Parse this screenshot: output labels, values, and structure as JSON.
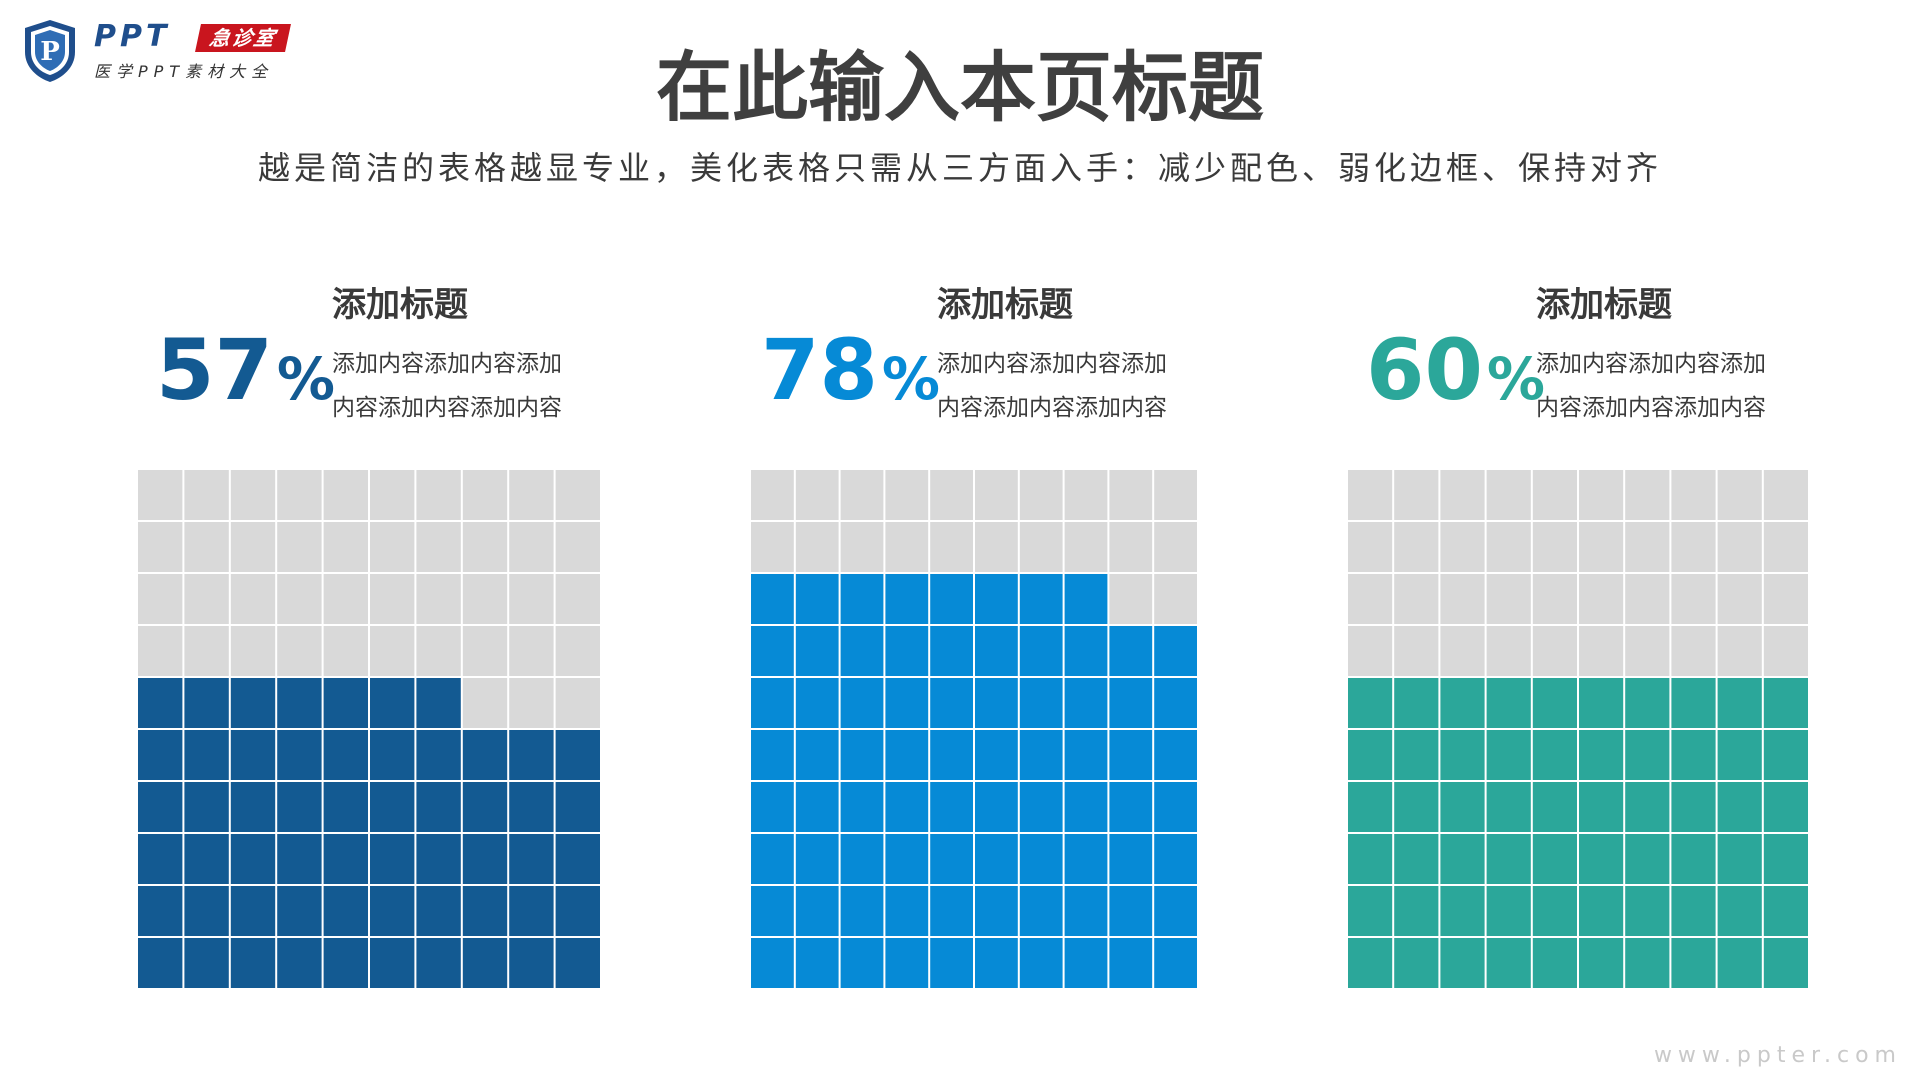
{
  "logo": {
    "mark_letter": "P",
    "brand": "PPT",
    "badge": "急诊室",
    "tagline": "医学PPT素材大全",
    "colors": {
      "shield": "#1f4e8c",
      "badge": "#c9151e"
    }
  },
  "header": {
    "title": "在此输入本页标题",
    "subtitle": "越是简洁的表格越显专业，美化表格只需从三方面入手：减少配色、弱化边框、保持对齐"
  },
  "chart_data": [
    {
      "type": "waffle",
      "value": 57,
      "value_label": "57",
      "unit": "%",
      "grid": {
        "rows": 10,
        "cols": 10
      },
      "fill_from": "bottom",
      "title": "添加标题",
      "body_line1": "添加内容添加内容添加",
      "body_line2": "内容添加内容添加内容",
      "color": "#135a92",
      "empty_color": "#d9d9d9"
    },
    {
      "type": "waffle",
      "value": 78,
      "value_label": "78",
      "unit": "%",
      "grid": {
        "rows": 10,
        "cols": 10
      },
      "fill_from": "bottom",
      "title": "添加标题",
      "body_line1": "添加内容添加内容添加",
      "body_line2": "内容添加内容添加内容",
      "color": "#068ad6",
      "empty_color": "#d9d9d9"
    },
    {
      "type": "waffle",
      "value": 60,
      "value_label": "60",
      "unit": "%",
      "grid": {
        "rows": 10,
        "cols": 10
      },
      "fill_from": "bottom",
      "title": "添加标题",
      "body_line1": "添加内容添加内容添加",
      "body_line2": "内容添加内容添加内容",
      "color": "#2ba79a",
      "empty_color": "#d9d9d9"
    }
  ],
  "watermark": "www.ppter.com"
}
